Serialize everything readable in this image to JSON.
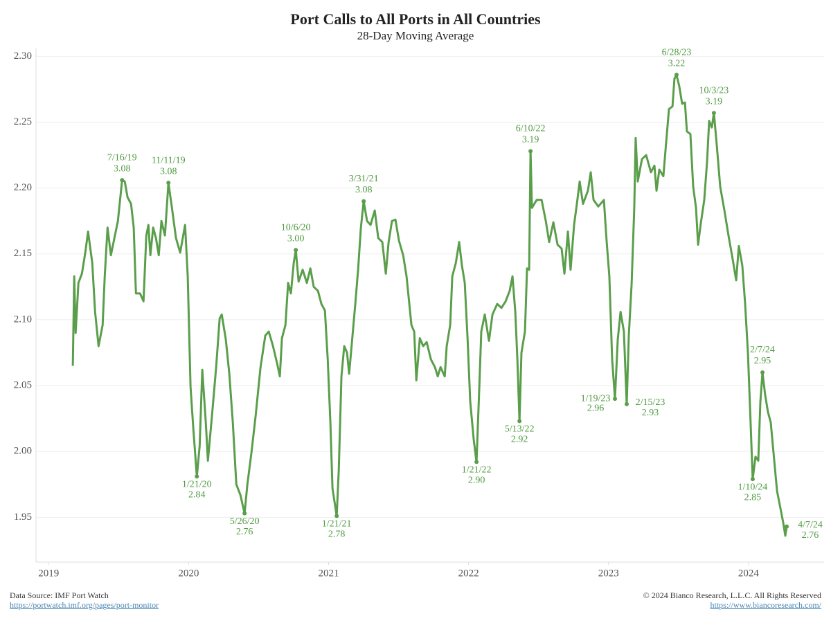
{
  "chart_data": {
    "type": "line",
    "title": "Port Calls to All Ports in All Countries",
    "subtitle": "28-Day Moving Average",
    "color": "#5a9e4b",
    "grid": true,
    "xlim": [
      2018.91,
      2024.54
    ],
    "xticks": [
      2019,
      2020,
      2021,
      2022,
      2023,
      2024
    ],
    "ylim": [
      1.916,
      2.306
    ],
    "yticks": [
      {
        "value": 2.3,
        "label": "2.30"
      },
      2.25,
      {
        "value": 2.2,
        "label": "2.20"
      },
      2.15,
      {
        "value": 2.1,
        "label": "2.10"
      },
      2.05,
      {
        "value": 2.0,
        "label": "2.00"
      },
      1.95
    ],
    "x": [
      2019.173,
      2019.183,
      2019.193,
      2019.213,
      2019.238,
      2019.262,
      2019.282,
      2019.312,
      2019.332,
      2019.357,
      2019.386,
      2019.401,
      2019.421,
      2019.445,
      2019.47,
      2019.495,
      2019.525,
      2019.544,
      2019.564,
      2019.589,
      2019.608,
      2019.624,
      2019.653,
      2019.678,
      2019.698,
      2019.713,
      2019.727,
      2019.747,
      2019.767,
      2019.787,
      2019.806,
      2019.831,
      2019.856,
      2019.881,
      2019.91,
      2019.94,
      2019.975,
      2019.994,
      2020.014,
      2020.034,
      2020.059,
      2020.079,
      2020.098,
      2020.123,
      2020.138,
      2020.167,
      2020.197,
      2020.222,
      2020.237,
      2020.266,
      2020.291,
      2020.316,
      2020.341,
      2020.37,
      2020.4,
      2020.42,
      2020.449,
      2020.479,
      2020.514,
      2020.548,
      2020.573,
      2020.603,
      2020.632,
      2020.652,
      2020.667,
      2020.692,
      2020.711,
      2020.731,
      2020.751,
      2020.766,
      2020.786,
      2020.815,
      2020.845,
      2020.87,
      2020.894,
      2020.924,
      2020.949,
      2020.974,
      2020.994,
      2021.013,
      2021.028,
      2021.058,
      2021.073,
      2021.092,
      2021.112,
      2021.132,
      2021.147,
      2021.167,
      2021.191,
      2021.211,
      2021.231,
      2021.251,
      2021.275,
      2021.3,
      2021.33,
      2021.355,
      2021.384,
      2021.409,
      2021.429,
      2021.453,
      2021.478,
      2021.503,
      2021.533,
      2021.557,
      2021.577,
      2021.592,
      2021.612,
      2021.627,
      2021.652,
      2021.676,
      2021.701,
      2021.731,
      2021.76,
      2021.78,
      2021.8,
      2021.83,
      2021.844,
      2021.869,
      2021.884,
      2021.909,
      2021.933,
      2021.953,
      2021.973,
      2021.993,
      2022.012,
      2022.037,
      2022.057,
      2022.077,
      2022.091,
      2022.116,
      2022.146,
      2022.171,
      2022.205,
      2022.235,
      2022.265,
      2022.294,
      2022.314,
      2022.334,
      2022.349,
      2022.364,
      2022.378,
      2022.403,
      2022.418,
      2022.433,
      2022.443,
      2022.453,
      2022.487,
      2022.522,
      2022.552,
      2022.576,
      2022.606,
      2022.636,
      2022.665,
      2022.685,
      2022.71,
      2022.729,
      2022.754,
      2022.774,
      2022.794,
      2022.818,
      2022.853,
      2022.873,
      2022.893,
      2022.927,
      2022.967,
      2022.987,
      2023.006,
      2023.026,
      2023.046,
      2023.066,
      2023.086,
      2023.11,
      2023.13,
      2023.145,
      2023.165,
      2023.184,
      2023.194,
      2023.209,
      2023.239,
      2023.269,
      2023.303,
      2023.328,
      2023.343,
      2023.363,
      2023.392,
      2023.412,
      2023.432,
      2023.457,
      2023.471,
      2023.486,
      2023.506,
      2023.526,
      2023.546,
      2023.56,
      2023.585,
      2023.605,
      2023.625,
      2023.64,
      2023.659,
      2023.684,
      2023.704,
      2023.719,
      2023.738,
      2023.753,
      2023.773,
      2023.798,
      2023.828,
      2023.857,
      2023.887,
      2023.912,
      2023.931,
      2023.956,
      2023.976,
      2023.996,
      2024.015,
      2024.03,
      2024.05,
      2024.07,
      2024.085,
      2024.1,
      2024.119,
      2024.139,
      2024.159,
      2024.184,
      2024.204,
      2024.228,
      2024.248,
      2024.263,
      2024.273
    ],
    "values": [
      2.065,
      2.133,
      2.09,
      2.128,
      2.135,
      2.151,
      2.167,
      2.143,
      2.106,
      2.08,
      2.096,
      2.133,
      2.17,
      2.149,
      2.162,
      2.175,
      2.206,
      2.205,
      2.193,
      2.188,
      2.17,
      2.12,
      2.12,
      2.114,
      2.164,
      2.172,
      2.149,
      2.17,
      2.162,
      2.149,
      2.175,
      2.164,
      2.204,
      2.185,
      2.162,
      2.151,
      2.172,
      2.133,
      2.049,
      2.017,
      1.981,
      2.004,
      2.062,
      2.022,
      1.993,
      2.027,
      2.064,
      2.101,
      2.104,
      2.085,
      2.059,
      2.022,
      1.975,
      1.967,
      1.953,
      1.975,
      1.999,
      2.027,
      2.064,
      2.088,
      2.091,
      2.08,
      2.067,
      2.057,
      2.086,
      2.096,
      2.128,
      2.12,
      2.143,
      2.153,
      2.129,
      2.138,
      2.128,
      2.139,
      2.125,
      2.122,
      2.112,
      2.107,
      2.07,
      2.022,
      1.972,
      1.951,
      1.986,
      2.057,
      2.08,
      2.075,
      2.059,
      2.083,
      2.112,
      2.138,
      2.17,
      2.19,
      2.175,
      2.172,
      2.183,
      2.162,
      2.159,
      2.135,
      2.159,
      2.175,
      2.176,
      2.16,
      2.149,
      2.133,
      2.112,
      2.096,
      2.091,
      2.054,
      2.086,
      2.08,
      2.083,
      2.07,
      2.064,
      2.057,
      2.064,
      2.057,
      2.08,
      2.096,
      2.133,
      2.143,
      2.159,
      2.141,
      2.128,
      2.086,
      2.038,
      2.009,
      1.992,
      2.049,
      2.091,
      2.104,
      2.084,
      2.104,
      2.112,
      2.109,
      2.114,
      2.122,
      2.133,
      2.106,
      2.07,
      2.023,
      2.075,
      2.091,
      2.139,
      2.138,
      2.228,
      2.185,
      2.191,
      2.191,
      2.175,
      2.159,
      2.174,
      2.157,
      2.154,
      2.135,
      2.167,
      2.138,
      2.172,
      2.188,
      2.205,
      2.188,
      2.198,
      2.212,
      2.191,
      2.186,
      2.191,
      2.159,
      2.133,
      2.07,
      2.04,
      2.085,
      2.106,
      2.091,
      2.036,
      2.088,
      2.127,
      2.185,
      2.238,
      2.205,
      2.222,
      2.225,
      2.212,
      2.217,
      2.198,
      2.214,
      2.209,
      2.235,
      2.26,
      2.262,
      2.283,
      2.286,
      2.277,
      2.264,
      2.265,
      2.243,
      2.241,
      2.201,
      2.185,
      2.157,
      2.173,
      2.191,
      2.22,
      2.251,
      2.246,
      2.257,
      2.233,
      2.201,
      2.183,
      2.164,
      2.146,
      2.13,
      2.156,
      2.141,
      2.112,
      2.075,
      2.022,
      1.979,
      1.996,
      1.993,
      2.038,
      2.06,
      2.043,
      2.03,
      2.022,
      1.993,
      1.97,
      1.957,
      1.946,
      1.936,
      1.943
    ],
    "annotations": [
      {
        "x": 2019.525,
        "y": 2.206,
        "date": "7/16/19",
        "text": "3.08",
        "position": "above"
      },
      {
        "x": 2019.856,
        "y": 2.204,
        "date": "11/11/19",
        "text": "3.08",
        "position": "above"
      },
      {
        "x": 2020.059,
        "y": 1.981,
        "date": "1/21/20",
        "text": "2.84",
        "position": "below"
      },
      {
        "x": 2020.4,
        "y": 1.953,
        "date": "5/26/20",
        "text": "2.76",
        "position": "below"
      },
      {
        "x": 2020.766,
        "y": 2.153,
        "date": "10/6/20",
        "text": "3.00",
        "position": "above"
      },
      {
        "x": 2021.058,
        "y": 1.951,
        "date": "1/21/21",
        "text": "2.78",
        "position": "below"
      },
      {
        "x": 2021.251,
        "y": 2.19,
        "date": "3/31/21",
        "text": "3.08",
        "position": "above"
      },
      {
        "x": 2022.057,
        "y": 1.992,
        "date": "1/21/22",
        "text": "2.90",
        "position": "below"
      },
      {
        "x": 2022.364,
        "y": 2.023,
        "date": "5/13/22",
        "text": "2.92",
        "position": "below"
      },
      {
        "x": 2022.443,
        "y": 2.228,
        "date": "6/10/22",
        "text": "3.19",
        "position": "above"
      },
      {
        "x": 2023.046,
        "y": 2.04,
        "date": "1/19/23",
        "text": "2.96",
        "position": "left"
      },
      {
        "x": 2023.13,
        "y": 2.036,
        "date": "2/15/23",
        "text": "2.93",
        "position": "right"
      },
      {
        "x": 2023.486,
        "y": 2.286,
        "date": "6/28/23",
        "text": "3.22",
        "position": "above"
      },
      {
        "x": 2023.753,
        "y": 2.257,
        "date": "10/3/23",
        "text": "3.19",
        "position": "above"
      },
      {
        "x": 2024.03,
        "y": 1.979,
        "date": "1/10/24",
        "text": "2.85",
        "position": "below"
      },
      {
        "x": 2024.1,
        "y": 2.06,
        "date": "2/7/24",
        "text": "2.95",
        "position": "above"
      },
      {
        "x": 2024.273,
        "y": 1.943,
        "date": "4/7/24",
        "text": "2.76",
        "position": "right"
      }
    ]
  },
  "footer": {
    "source": "Data Source: IMF Port Watch",
    "source_link": "https://portwatch.imf.org/pages/port-monitor",
    "copyright": "© 2024 Bianco Research, L.L.C. All Rights Reserved",
    "site_link": "https://www.biancoresearch.com/"
  }
}
